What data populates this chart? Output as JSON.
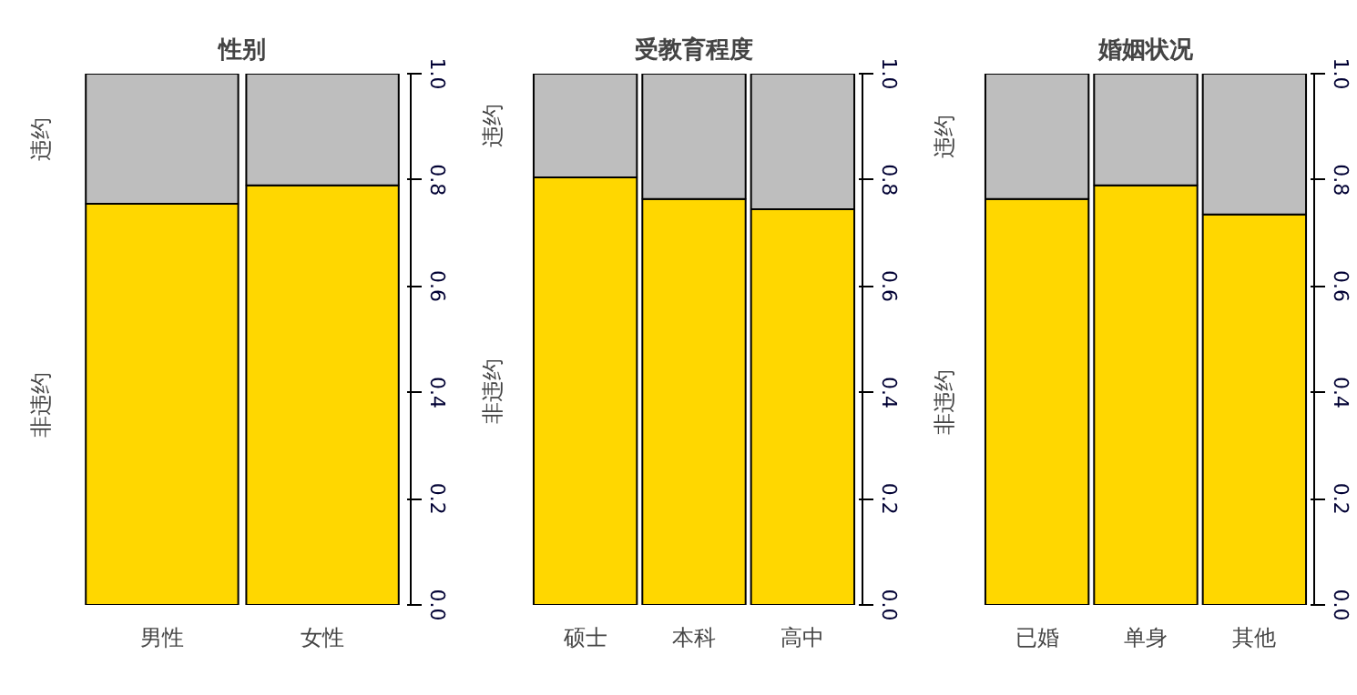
{
  "chart_data": [
    {
      "type": "bar",
      "stacked": true,
      "title": "性别",
      "categories": [
        "男性",
        "女性"
      ],
      "series": [
        {
          "name": "非违约",
          "color": "#ffd700",
          "values": [
            0.755,
            0.79
          ]
        },
        {
          "name": "违约",
          "color": "#bebebe",
          "values": [
            0.245,
            0.21
          ]
        }
      ],
      "ylim": [
        0,
        1
      ],
      "yticks": [
        {
          "value": 0,
          "label": "0.0"
        },
        {
          "value": 0.2,
          "label": "0.2"
        },
        {
          "value": 0.4,
          "label": "0.4"
        },
        {
          "value": 0.6,
          "label": "0.6"
        },
        {
          "value": 0.8,
          "label": "0.8"
        },
        {
          "value": 1,
          "label": "1.0"
        }
      ]
    },
    {
      "type": "bar",
      "stacked": true,
      "title": "受教育程度",
      "categories": [
        "硕士",
        "本科",
        "高中"
      ],
      "series": [
        {
          "name": "非违约",
          "color": "#ffd700",
          "values": [
            0.805,
            0.764,
            0.745
          ]
        },
        {
          "name": "违约",
          "color": "#bebebe",
          "values": [
            0.195,
            0.236,
            0.255
          ]
        }
      ],
      "ylim": [
        0,
        1
      ],
      "yticks": [
        {
          "value": 0,
          "label": "0.0"
        },
        {
          "value": 0.2,
          "label": "0.2"
        },
        {
          "value": 0.4,
          "label": "0.4"
        },
        {
          "value": 0.6,
          "label": "0.6"
        },
        {
          "value": 0.8,
          "label": "0.8"
        },
        {
          "value": 1,
          "label": "1.0"
        }
      ]
    },
    {
      "type": "bar",
      "stacked": true,
      "title": "婚姻状况",
      "categories": [
        "已婚",
        "单身",
        "其他"
      ],
      "series": [
        {
          "name": "非违约",
          "color": "#ffd700",
          "values": [
            0.764,
            0.79,
            0.735
          ]
        },
        {
          "name": "违约",
          "color": "#bebebe",
          "values": [
            0.236,
            0.21,
            0.265
          ]
        }
      ],
      "ylim": [
        0,
        1
      ],
      "yticks": [
        {
          "value": 0,
          "label": "0.0"
        },
        {
          "value": 0.2,
          "label": "0.2"
        },
        {
          "value": 0.4,
          "label": "0.4"
        },
        {
          "value": 0.6,
          "label": "0.6"
        },
        {
          "value": 0.8,
          "label": "0.8"
        },
        {
          "value": 1,
          "label": "1.0"
        }
      ]
    }
  ]
}
